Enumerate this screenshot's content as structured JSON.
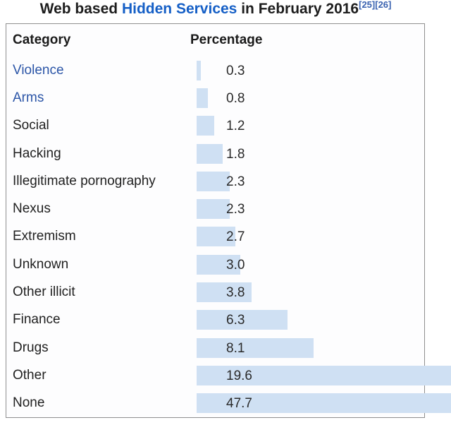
{
  "title": {
    "prefix": "Web based ",
    "link_text": "Hidden Services",
    "suffix": " in February 2016",
    "refs": [
      "[25]",
      "[26]"
    ]
  },
  "table": {
    "headers": {
      "category": "Category",
      "percentage": "Percentage"
    },
    "rows": [
      {
        "category": "Violence",
        "value": "0.3",
        "is_link": true
      },
      {
        "category": "Arms",
        "value": "0.8",
        "is_link": true
      },
      {
        "category": "Social",
        "value": "1.2",
        "is_link": false
      },
      {
        "category": "Hacking",
        "value": "1.8",
        "is_link": false
      },
      {
        "category": "Illegitimate pornography",
        "value": "2.3",
        "is_link": false
      },
      {
        "category": "Nexus",
        "value": "2.3",
        "is_link": false
      },
      {
        "category": "Extremism",
        "value": "2.7",
        "is_link": false
      },
      {
        "category": "Unknown",
        "value": "3.0",
        "is_link": false
      },
      {
        "category": "Other illicit",
        "value": "3.8",
        "is_link": false
      },
      {
        "category": "Finance",
        "value": "6.3",
        "is_link": false
      },
      {
        "category": "Drugs",
        "value": "8.1",
        "is_link": false
      },
      {
        "category": "Other",
        "value": "19.6",
        "is_link": false
      },
      {
        "category": "None",
        "value": "47.7",
        "is_link": false
      }
    ]
  },
  "chart_data": {
    "type": "bar",
    "orientation": "horizontal",
    "title": "Web based Hidden Services in February 2016",
    "categories": [
      "Violence",
      "Arms",
      "Social",
      "Hacking",
      "Illegitimate pornography",
      "Nexus",
      "Extremism",
      "Unknown",
      "Other illicit",
      "Finance",
      "Drugs",
      "Other",
      "None"
    ],
    "values": [
      0.3,
      0.8,
      1.2,
      1.8,
      2.3,
      2.3,
      2.7,
      3.0,
      3.8,
      6.3,
      8.1,
      19.6,
      47.7
    ],
    "xlabel": "Percentage",
    "ylabel": "Category",
    "bars_clipped_at_right_edge": [
      "Other",
      "None"
    ],
    "bar_color": "#cfe0f3",
    "grid": false,
    "legend": false
  },
  "colors": {
    "bar": "#cfe0f3",
    "row_link_blue": "#2b55a7",
    "title_link_blue": "#155fc6",
    "ref_link_blue": "#3a62b0",
    "text": "#212121",
    "border": "#8f8f8f"
  }
}
